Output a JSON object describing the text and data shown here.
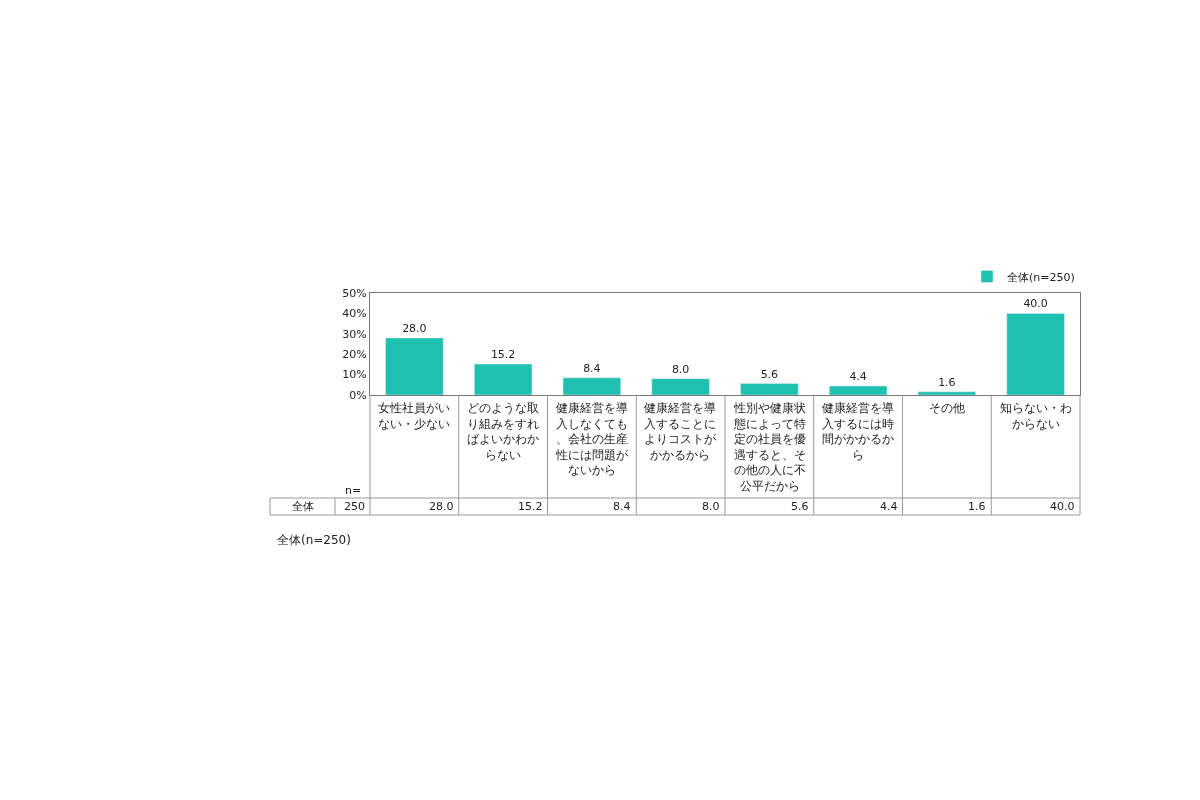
{
  "chart_data": {
    "type": "bar",
    "categories": [
      "女性社員がいない・少ない",
      "どのような取り組みをすればよいかわからない",
      "健康経営を導入しなくても、会社の生産性には問題がないから",
      "健康経営を導入することによりコストがかかるから",
      "性別や健康状態によって特定の社員を優遇すると、その他の人に不公平だから",
      "健康経営を導入するには時間がかかるから",
      "その他",
      "知らない・わからない"
    ],
    "series": [
      {
        "name": "全体(n=250)",
        "color": "#20c0b0",
        "values": [
          28.0,
          15.2,
          8.4,
          8.0,
          5.6,
          4.4,
          1.6,
          40.0
        ]
      }
    ],
    "ylim": [
      0,
      50
    ],
    "yticks": [
      {
        "value": 0,
        "label": "0%"
      },
      {
        "value": 10,
        "label": "10%"
      },
      {
        "value": 20,
        "label": "20%"
      },
      {
        "value": 30,
        "label": "30%"
      },
      {
        "value": 40,
        "label": "40%"
      },
      {
        "value": 50,
        "label": "50%"
      }
    ],
    "value_labels": [
      "28.0",
      "15.2",
      "8.4",
      "8.0",
      "5.6",
      "4.4",
      "1.6",
      "40.0"
    ],
    "legend": "top right",
    "annotations": [
      "n=",
      "全体",
      "250",
      "全体(n=250)"
    ]
  }
}
